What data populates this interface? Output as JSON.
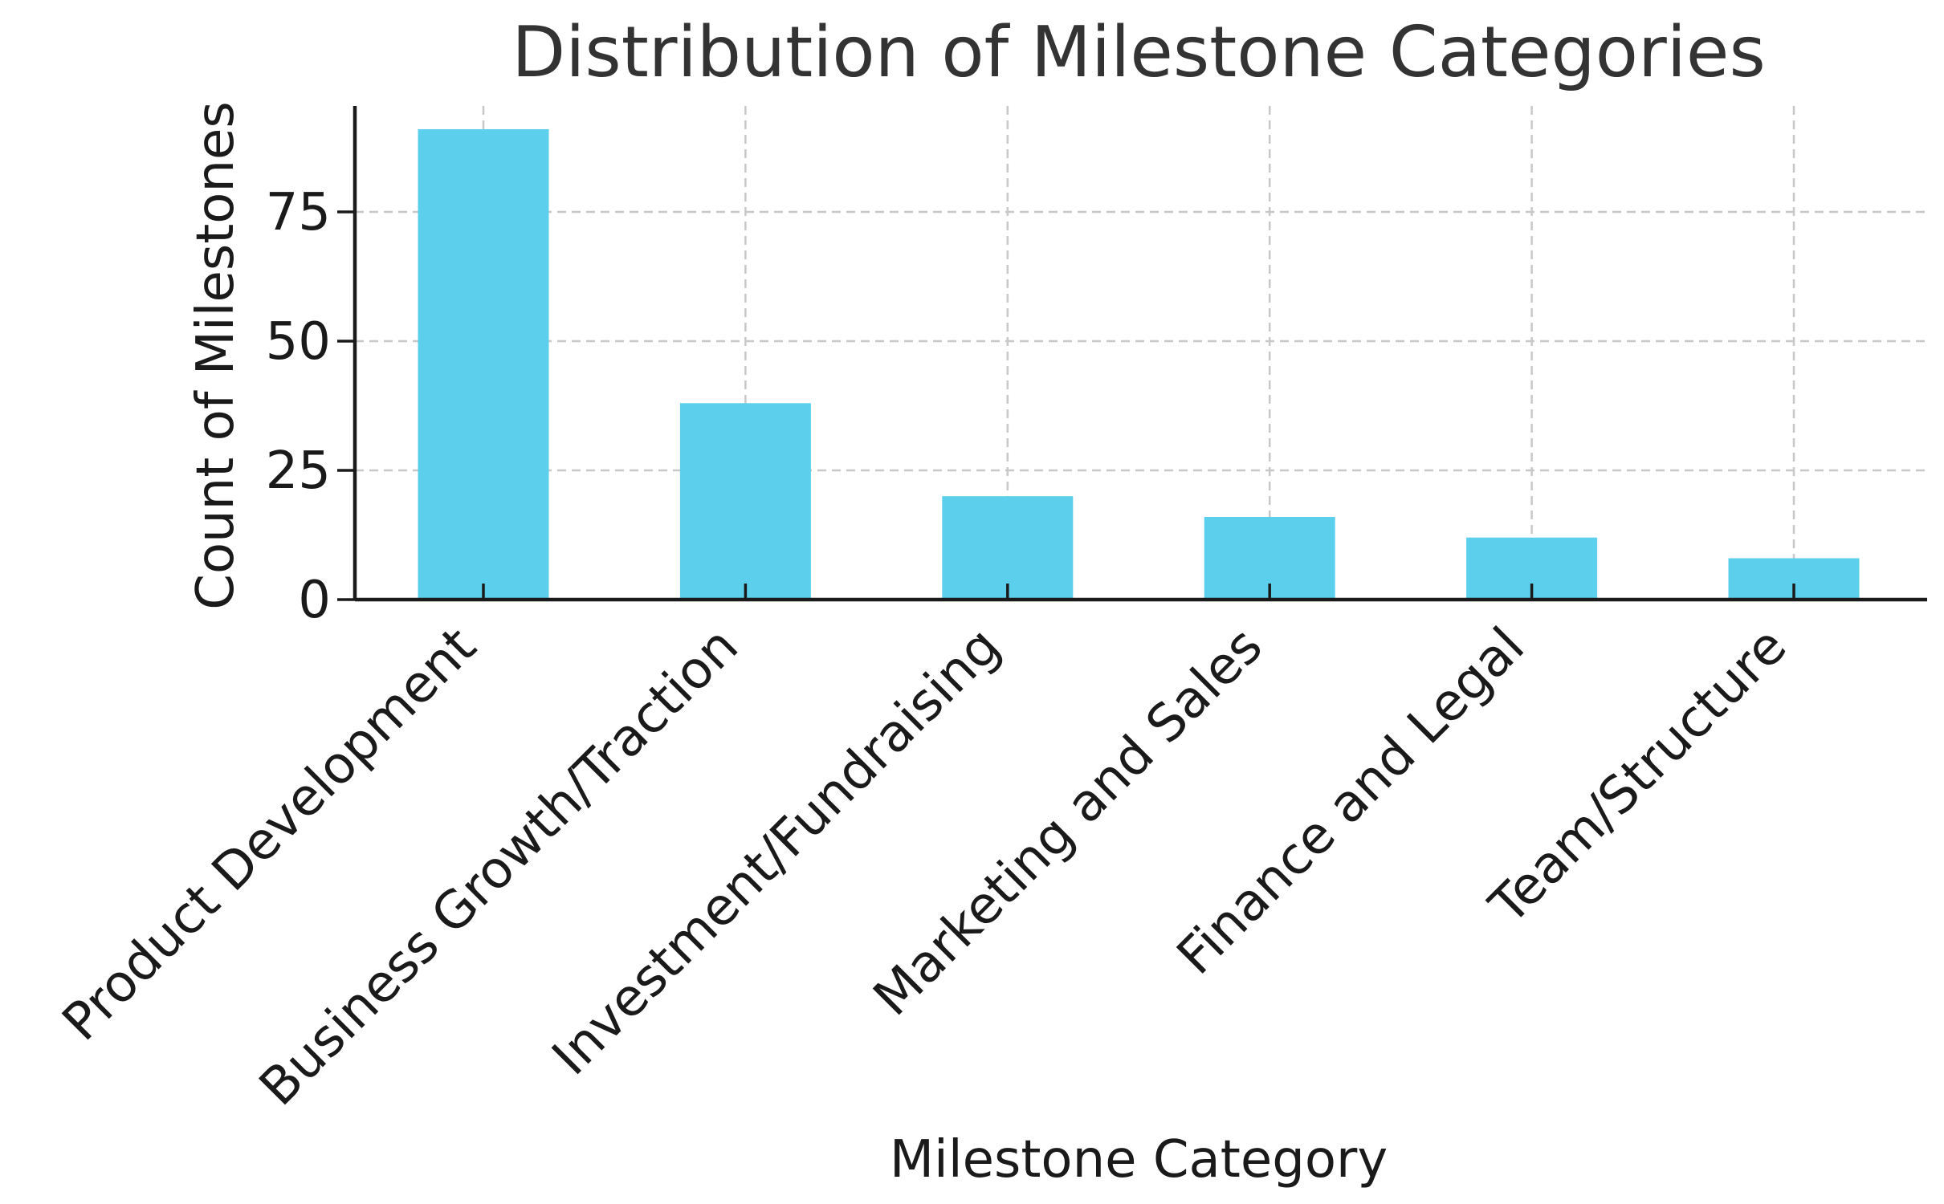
{
  "chart_data": {
    "type": "bar",
    "title": "Distribution of Milestone Categories",
    "xlabel": "Milestone Category",
    "ylabel": "Count of Milestones",
    "categories": [
      "Product Development",
      "Business Growth/Traction",
      "Investment/Fundraising",
      "Marketing and Sales",
      "Finance and Legal",
      "Team/Structure"
    ],
    "values": [
      91,
      38,
      20,
      16,
      12,
      8
    ],
    "ylim": [
      0,
      95.5
    ],
    "yticks": [
      0,
      25,
      50,
      75
    ],
    "grid": true,
    "bar_color": "#5bcfec",
    "axis_color": "#1a1a1a",
    "grid_color": "#c8c8c8",
    "title_color": "#333333"
  }
}
